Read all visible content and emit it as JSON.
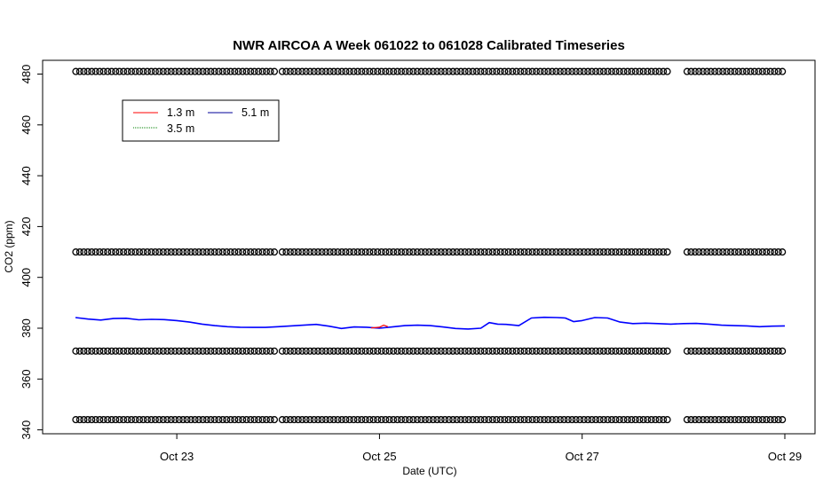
{
  "chart_data": {
    "type": "line",
    "title": "NWR AIRCOA A  Week 061022 to 061028  Calibrated Timeseries",
    "xlabel": "Date (UTC)",
    "ylabel": "CO2 (ppm)",
    "xlim": [
      "2006-10-22T00:00",
      "2006-10-29T00:00"
    ],
    "ylim": [
      340,
      485
    ],
    "x_ticks": [
      {
        "value": "2006-10-23",
        "label": "Oct 23"
      },
      {
        "value": "2006-10-25",
        "label": "Oct 25"
      },
      {
        "value": "2006-10-27",
        "label": "Oct 27"
      },
      {
        "value": "2006-10-29",
        "label": "Oct 29"
      }
    ],
    "y_ticks": [
      340,
      360,
      380,
      400,
      420,
      440,
      460,
      480
    ],
    "legend": {
      "position": "top-left",
      "entries": [
        {
          "name": "1.3 m",
          "color": "#ff0000"
        },
        {
          "name": "3.5 m",
          "color": "#008000"
        },
        {
          "name": "5.1 m",
          "color": "#000099"
        }
      ]
    },
    "series": [
      {
        "name": "5.1 m",
        "color": "#0000ff",
        "points": [
          [
            "2006-10-22T00:00",
            384.2
          ],
          [
            "2006-10-22T03:00",
            383.6
          ],
          [
            "2006-10-22T06:00",
            383.2
          ],
          [
            "2006-10-22T09:00",
            383.8
          ],
          [
            "2006-10-22T12:00",
            383.9
          ],
          [
            "2006-10-22T15:00",
            383.3
          ],
          [
            "2006-10-22T18:00",
            383.5
          ],
          [
            "2006-10-22T21:00",
            383.4
          ],
          [
            "2006-10-23T00:00",
            383.0
          ],
          [
            "2006-10-23T03:00",
            382.4
          ],
          [
            "2006-10-23T06:00",
            381.6
          ],
          [
            "2006-10-23T09:00",
            381.0
          ],
          [
            "2006-10-23T12:00",
            380.6
          ],
          [
            "2006-10-23T15:00",
            380.4
          ],
          [
            "2006-10-23T18:00",
            380.3
          ],
          [
            "2006-10-23T21:00",
            380.3
          ],
          [
            "2006-10-24T00:00",
            380.6
          ],
          [
            "2006-10-24T03:00",
            380.9
          ],
          [
            "2006-10-24T06:00",
            381.2
          ],
          [
            "2006-10-24T09:00",
            381.5
          ],
          [
            "2006-10-24T12:00",
            380.8
          ],
          [
            "2006-10-24T15:00",
            379.9
          ],
          [
            "2006-10-24T18:00",
            380.5
          ],
          [
            "2006-10-24T21:00",
            380.4
          ],
          [
            "2006-10-25T00:00",
            380.0
          ],
          [
            "2006-10-25T03:00",
            380.5
          ],
          [
            "2006-10-25T06:00",
            381.0
          ],
          [
            "2006-10-25T09:00",
            381.2
          ],
          [
            "2006-10-25T12:00",
            381.0
          ],
          [
            "2006-10-25T15:00",
            380.5
          ],
          [
            "2006-10-25T18:00",
            379.9
          ],
          [
            "2006-10-25T21:00",
            379.7
          ],
          [
            "2006-10-26T00:00",
            380.0
          ],
          [
            "2006-10-26T02:00",
            382.2
          ],
          [
            "2006-10-26T04:00",
            381.6
          ],
          [
            "2006-10-26T06:00",
            381.5
          ],
          [
            "2006-10-26T09:00",
            381.0
          ],
          [
            "2006-10-26T12:00",
            384.0
          ],
          [
            "2006-10-26T15:00",
            384.3
          ],
          [
            "2006-10-26T18:00",
            384.2
          ],
          [
            "2006-10-26T20:00",
            384.0
          ],
          [
            "2006-10-26T22:00",
            382.6
          ],
          [
            "2006-10-27T00:00",
            383.0
          ],
          [
            "2006-10-27T03:00",
            384.2
          ],
          [
            "2006-10-27T06:00",
            384.0
          ],
          [
            "2006-10-27T09:00",
            382.4
          ],
          [
            "2006-10-27T12:00",
            381.8
          ],
          [
            "2006-10-27T15:00",
            382.0
          ],
          [
            "2006-10-27T18:00",
            381.8
          ],
          [
            "2006-10-27T21:00",
            381.6
          ],
          [
            "2006-10-28T00:00",
            381.8
          ],
          [
            "2006-10-28T03:00",
            381.9
          ],
          [
            "2006-10-28T06:00",
            381.6
          ],
          [
            "2006-10-28T09:00",
            381.2
          ],
          [
            "2006-10-28T12:00",
            381.0
          ],
          [
            "2006-10-28T15:00",
            380.9
          ],
          [
            "2006-10-28T18:00",
            380.6
          ],
          [
            "2006-10-28T21:00",
            380.8
          ],
          [
            "2006-10-29T00:00",
            380.9
          ]
        ]
      },
      {
        "name": "1.3 m",
        "color": "#ff0000",
        "points": [
          [
            "2006-10-24T22:00",
            380.1
          ],
          [
            "2006-10-25T00:00",
            380.4
          ],
          [
            "2006-10-25T01:00",
            381.2
          ],
          [
            "2006-10-25T02:00",
            380.6
          ]
        ]
      }
    ],
    "calibration_markers": {
      "symbol": "open-circle",
      "levels": [
        481,
        410,
        371,
        344
      ],
      "start": "2006-10-22T00:00",
      "end": "2006-10-29T00:00",
      "gaps": [
        [
          "2006-10-24T00:00",
          "2006-10-24T00:40"
        ],
        [
          "2006-10-27T21:00",
          "2006-10-28T00:00"
        ]
      ]
    }
  }
}
